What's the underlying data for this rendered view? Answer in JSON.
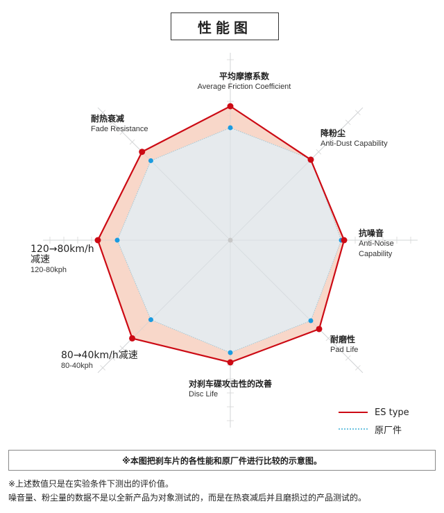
{
  "title": "性能图",
  "chart_data": {
    "type": "radar",
    "title": "性能图",
    "scale": [
      0,
      10
    ],
    "grid": true,
    "legend_placement": "bottom-right",
    "axes": [
      {
        "zh": "平均摩擦系数",
        "en": "Average Friction Coefficient"
      },
      {
        "zh": "降粉尘",
        "en": "Anti-Dust Capability"
      },
      {
        "zh": "抗噪音",
        "en": "Anti-Noise Capability"
      },
      {
        "zh": "耐磨性",
        "en": "Pad Life"
      },
      {
        "zh": "对刹车碟攻击性的改善",
        "en": "Disc Life"
      },
      {
        "zh": "80→40km/h减速",
        "en": "80-40kph"
      },
      {
        "zh": "120→80km/h 减速",
        "en": "120-80kph"
      },
      {
        "zh": "耐热衰减",
        "en": "Fade Resistance"
      }
    ],
    "series": [
      {
        "name": "ES type",
        "color": "#cc0a14",
        "values": [
          9.65,
          8.2,
          8.2,
          9.05,
          8.8,
          10.0,
          9.55,
          9.0
        ]
      },
      {
        "name": "原厂件",
        "color": "#1a9be0",
        "values": [
          8.1,
          8.25,
          8.0,
          8.2,
          8.1,
          8.1,
          8.15,
          8.1
        ]
      }
    ]
  },
  "notes": {
    "box": "※本图把刹车片的各性能和原厂件进行比较的示意图。",
    "line1": "※上述数值只是在实验条件下测出的评价值。",
    "line2": "噪音量、粉尘量的数据不是以全新产品为对象测试的，而是在热衰减后并且磨损过的产品测试的。"
  }
}
